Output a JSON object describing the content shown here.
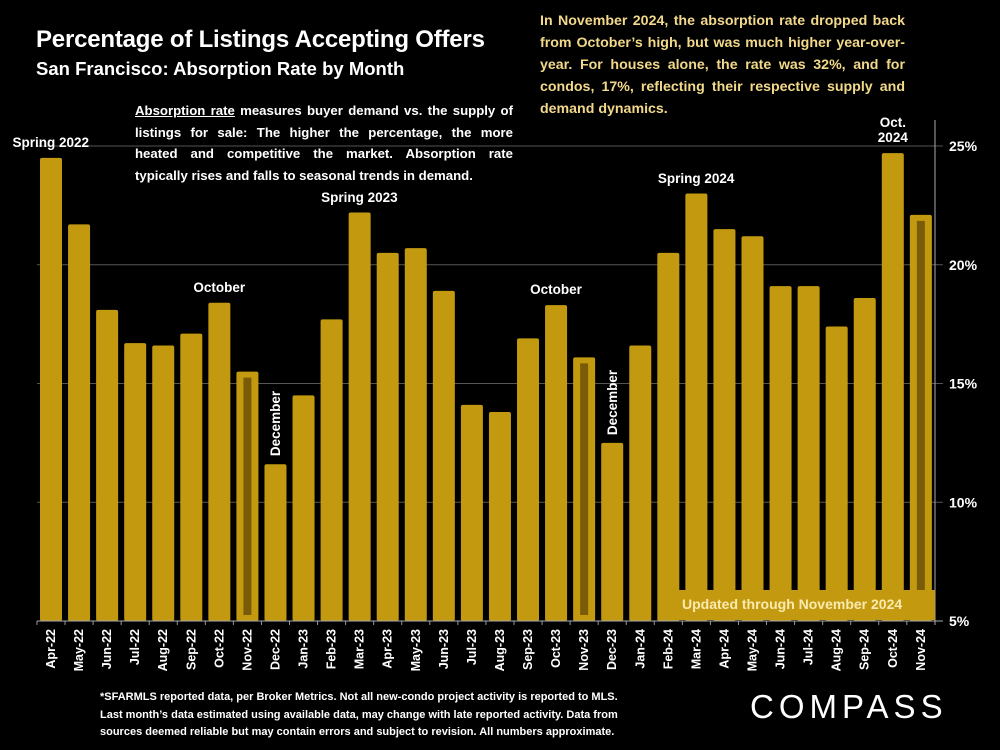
{
  "header": {
    "title": "Percentage of Listings Accepting Offers",
    "subtitle": "San Francisco:  Absorption Rate by Month"
  },
  "description": {
    "term": "Absorption rate",
    "text": " measures buyer demand vs. the supply of listings for sale: The higher the percentage, the more heated and competitive the market. Absorption rate typically rises and falls to seasonal trends in demand."
  },
  "callout": "In November 2024, the absorption rate dropped back from October’s high, but was much higher year-over-year. For houses alone, the rate was 32%, and for condos, 17%, reflecting their respective supply and demand dynamics.",
  "banner": "Updated through November 2024",
  "footnote": [
    "*SFARMLS reported data, per Broker Metrics. Not all new-condo project activity is reported to MLS.",
    "Last month’s data estimated using available data, may change with late reported activity. Data from",
    "sources deemed reliable but may contain errors and subject to revision. All numbers approximate."
  ],
  "logo": "COMPASS",
  "colors": {
    "background": "#000000",
    "bar": "#c39a0f",
    "bar_highlight_stripe": "#7a5c08",
    "callout_text": "#f2d98a",
    "gridline": "#555555"
  },
  "chart_data": {
    "type": "bar",
    "title": "Percentage of Listings Accepting Offers",
    "subtitle": "San Francisco: Absorption Rate by Month",
    "xlabel": "",
    "ylabel": "",
    "ylim": [
      5,
      25
    ],
    "yticks": [
      "5%",
      "10%",
      "15%",
      "20%",
      "25%"
    ],
    "ytick_values": [
      5,
      10,
      15,
      20,
      25
    ],
    "grid": true,
    "axis_position": "right",
    "categories": [
      "Apr-22",
      "May-22",
      "Jun-22",
      "Jul-22",
      "Aug-22",
      "Sep-22",
      "Oct-22",
      "Nov-22",
      "Dec-22",
      "Jan-23",
      "Feb-23",
      "Mar-23",
      "Apr-23",
      "May-23",
      "Jun-23",
      "Jul-23",
      "Aug-23",
      "Sep-23",
      "Oct-23",
      "Nov-23",
      "Dec-23",
      "Jan-24",
      "Feb-24",
      "Mar-24",
      "Apr-24",
      "May-24",
      "Jun-24",
      "Jul-24",
      "Aug-24",
      "Sep-24",
      "Oct-24",
      "Nov-24"
    ],
    "values": [
      24.5,
      21.7,
      18.1,
      16.7,
      16.6,
      17.1,
      18.4,
      15.5,
      11.6,
      14.5,
      17.7,
      22.2,
      20.5,
      20.7,
      18.9,
      14.1,
      13.8,
      16.9,
      18.3,
      16.1,
      12.5,
      16.6,
      20.5,
      23.0,
      21.5,
      21.2,
      19.1,
      19.1,
      17.4,
      18.6,
      24.7,
      22.1
    ],
    "highlighted": [
      "Nov-22",
      "Nov-23",
      "Nov-24"
    ],
    "annotations": [
      {
        "text": "Spring 2022",
        "category": "Apr-22",
        "orientation": "horizontal"
      },
      {
        "text": "October",
        "category": "Oct-22",
        "orientation": "horizontal"
      },
      {
        "text": "December",
        "category": "Dec-22",
        "orientation": "vertical"
      },
      {
        "text": "Spring 2023",
        "category": "Mar-23",
        "orientation": "horizontal"
      },
      {
        "text": "October",
        "category": "Oct-23",
        "orientation": "horizontal"
      },
      {
        "text": "December",
        "category": "Dec-23",
        "orientation": "vertical"
      },
      {
        "text": "Spring 2024",
        "category": "Mar-24",
        "orientation": "horizontal"
      },
      {
        "text": "Oct.\n2024",
        "category": "Oct-24",
        "orientation": "horizontal"
      }
    ]
  }
}
